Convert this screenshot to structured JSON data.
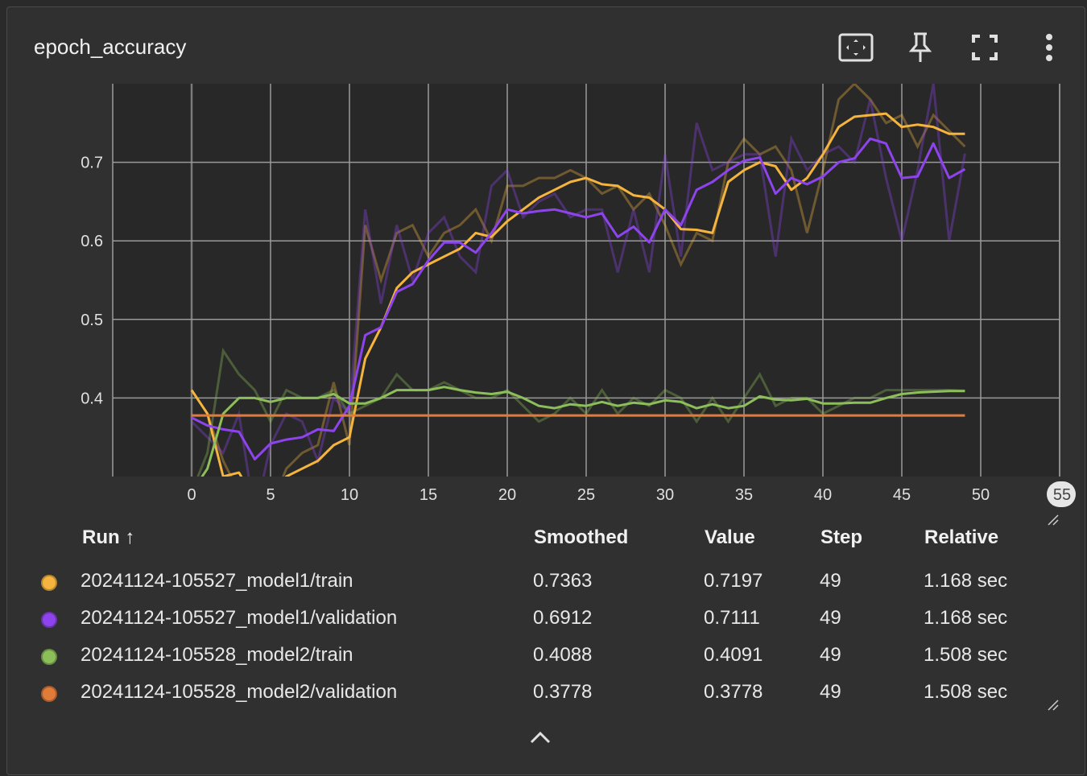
{
  "card": {
    "title": "epoch_accuracy",
    "icons": [
      "fit-domain-icon",
      "pin-icon",
      "fullscreen-icon",
      "more-vert-icon"
    ]
  },
  "chart_data": {
    "type": "line",
    "title": "epoch_accuracy",
    "xlim": [
      -5,
      55
    ],
    "ylim": [
      0.3,
      0.8
    ],
    "x_ticks": [
      "0",
      "5",
      "10",
      "15",
      "20",
      "25",
      "30",
      "35",
      "40",
      "45",
      "50",
      "55"
    ],
    "y_ticks": [
      "0.4",
      "0.5",
      "0.6",
      "0.7"
    ],
    "grid": true,
    "series": [
      {
        "name": "20241124-105527_model1/train",
        "color": "#f4b43e",
        "raw": [
          0.41,
          0.38,
          0.32,
          0.28,
          0.27,
          0.26,
          0.31,
          0.33,
          0.34,
          0.42,
          0.34,
          0.62,
          0.55,
          0.61,
          0.62,
          0.58,
          0.61,
          0.62,
          0.64,
          0.6,
          0.67,
          0.67,
          0.68,
          0.68,
          0.69,
          0.68,
          0.66,
          0.67,
          0.64,
          0.66,
          0.62,
          0.57,
          0.61,
          0.6,
          0.7,
          0.73,
          0.71,
          0.72,
          0.69,
          0.61,
          0.69,
          0.78,
          0.8,
          0.78,
          0.75,
          0.76,
          0.72,
          0.76,
          0.74,
          0.72
        ],
        "smoothed": [
          0.41,
          0.38,
          0.3,
          0.305,
          0.27,
          0.26,
          0.3,
          0.31,
          0.32,
          0.34,
          0.35,
          0.45,
          0.49,
          0.54,
          0.56,
          0.57,
          0.58,
          0.59,
          0.61,
          0.605,
          0.625,
          0.64,
          0.655,
          0.665,
          0.675,
          0.68,
          0.672,
          0.67,
          0.658,
          0.655,
          0.64,
          0.615,
          0.614,
          0.61,
          0.675,
          0.69,
          0.7,
          0.695,
          0.665,
          0.68,
          0.71,
          0.745,
          0.758,
          0.76,
          0.762,
          0.745,
          0.748,
          0.745,
          0.7363,
          0.7363
        ]
      },
      {
        "name": "20241124-105527_model1/validation",
        "color": "#8e44ec",
        "raw": [
          0.37,
          0.35,
          0.33,
          0.38,
          0.25,
          0.34,
          0.38,
          0.37,
          0.32,
          0.4,
          0.38,
          0.64,
          0.52,
          0.62,
          0.55,
          0.61,
          0.63,
          0.58,
          0.56,
          0.67,
          0.69,
          0.63,
          0.65,
          0.66,
          0.63,
          0.64,
          0.64,
          0.56,
          0.64,
          0.56,
          0.71,
          0.58,
          0.75,
          0.69,
          0.7,
          0.71,
          0.71,
          0.58,
          0.73,
          0.69,
          0.71,
          0.72,
          0.7,
          0.78,
          0.68,
          0.6,
          0.69,
          0.8,
          0.6,
          0.7111
        ],
        "smoothed": [
          0.375,
          0.365,
          0.36,
          0.357,
          0.322,
          0.342,
          0.347,
          0.35,
          0.36,
          0.358,
          0.39,
          0.48,
          0.49,
          0.535,
          0.545,
          0.575,
          0.598,
          0.598,
          0.585,
          0.61,
          0.64,
          0.635,
          0.638,
          0.64,
          0.635,
          0.63,
          0.635,
          0.605,
          0.618,
          0.598,
          0.64,
          0.62,
          0.665,
          0.675,
          0.69,
          0.702,
          0.706,
          0.66,
          0.68,
          0.672,
          0.682,
          0.7,
          0.705,
          0.73,
          0.724,
          0.68,
          0.682,
          0.724,
          0.68,
          0.6912
        ]
      },
      {
        "name": "20241124-105528_model2/train",
        "color": "#8cbf5a",
        "raw": [
          0.28,
          0.33,
          0.46,
          0.43,
          0.41,
          0.37,
          0.41,
          0.4,
          0.4,
          0.41,
          0.38,
          0.39,
          0.4,
          0.43,
          0.41,
          0.41,
          0.42,
          0.41,
          0.4,
          0.4,
          0.41,
          0.39,
          0.37,
          0.38,
          0.4,
          0.38,
          0.41,
          0.38,
          0.4,
          0.39,
          0.41,
          0.4,
          0.37,
          0.4,
          0.37,
          0.4,
          0.43,
          0.39,
          0.4,
          0.4,
          0.38,
          0.39,
          0.4,
          0.4,
          0.41,
          0.41,
          0.41,
          0.41,
          0.41,
          0.4091
        ],
        "smoothed": [
          0.28,
          0.31,
          0.38,
          0.4,
          0.4,
          0.395,
          0.4,
          0.4,
          0.4,
          0.405,
          0.393,
          0.393,
          0.4,
          0.41,
          0.41,
          0.41,
          0.414,
          0.41,
          0.407,
          0.405,
          0.408,
          0.4,
          0.39,
          0.387,
          0.392,
          0.39,
          0.395,
          0.39,
          0.394,
          0.392,
          0.397,
          0.395,
          0.387,
          0.392,
          0.387,
          0.39,
          0.402,
          0.398,
          0.397,
          0.399,
          0.393,
          0.393,
          0.394,
          0.394,
          0.4,
          0.405,
          0.407,
          0.408,
          0.4088,
          0.4088
        ]
      },
      {
        "name": "20241124-105528_model2/validation",
        "color": "#e07b3a",
        "raw": [
          0.3778,
          0.3778,
          0.3778,
          0.3778,
          0.3778,
          0.3778,
          0.3778,
          0.3778,
          0.3778,
          0.3778,
          0.3778,
          0.3778,
          0.3778,
          0.3778,
          0.3778,
          0.3778,
          0.3778,
          0.3778,
          0.3778,
          0.3778,
          0.3778,
          0.3778,
          0.3778,
          0.3778,
          0.3778,
          0.3778,
          0.3778,
          0.3778,
          0.3778,
          0.3778,
          0.3778,
          0.3778,
          0.3778,
          0.3778,
          0.3778,
          0.3778,
          0.3778,
          0.3778,
          0.3778,
          0.3778,
          0.3778,
          0.3778,
          0.3778,
          0.3778,
          0.3778,
          0.3778,
          0.3778,
          0.3778,
          0.3778,
          0.3778
        ],
        "smoothed": [
          0.3778,
          0.3778,
          0.3778,
          0.3778,
          0.3778,
          0.3778,
          0.3778,
          0.3778,
          0.3778,
          0.3778,
          0.3778,
          0.3778,
          0.3778,
          0.3778,
          0.3778,
          0.3778,
          0.3778,
          0.3778,
          0.3778,
          0.3778,
          0.3778,
          0.3778,
          0.3778,
          0.3778,
          0.3778,
          0.3778,
          0.3778,
          0.3778,
          0.3778,
          0.3778,
          0.3778,
          0.3778,
          0.3778,
          0.3778,
          0.3778,
          0.3778,
          0.3778,
          0.3778,
          0.3778,
          0.3778,
          0.3778,
          0.3778,
          0.3778,
          0.3778,
          0.3778,
          0.3778,
          0.3778,
          0.3778,
          0.3778,
          0.3778
        ]
      }
    ]
  },
  "table": {
    "headers": {
      "run": "Run ↑",
      "smoothed": "Smoothed",
      "value": "Value",
      "step": "Step",
      "relative": "Relative"
    },
    "rows": [
      {
        "run": "20241124-105527_model1/train",
        "color": "#f4b43e",
        "smoothed": "0.7363",
        "value": "0.7197",
        "step": "49",
        "relative": "1.168 sec"
      },
      {
        "run": "20241124-105527_model1/validation",
        "color": "#8e44ec",
        "smoothed": "0.6912",
        "value": "0.7111",
        "step": "49",
        "relative": "1.168 sec"
      },
      {
        "run": "20241124-105528_model2/train",
        "color": "#8cbf5a",
        "smoothed": "0.4088",
        "value": "0.4091",
        "step": "49",
        "relative": "1.508 sec"
      },
      {
        "run": "20241124-105528_model2/validation",
        "color": "#e07b3a",
        "smoothed": "0.3778",
        "value": "0.3778",
        "step": "49",
        "relative": "1.508 sec"
      }
    ]
  }
}
